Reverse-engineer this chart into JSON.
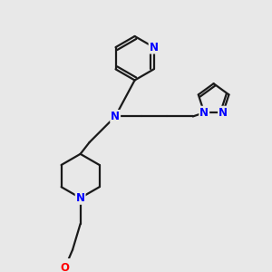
{
  "bg_color": "#e8e8e8",
  "bond_color": "#1a1a1a",
  "N_color": "#0000ff",
  "O_color": "#ff0000",
  "line_width": 1.6,
  "font_size_atom": 8.5,
  "fig_width": 3.0,
  "fig_height": 3.0,
  "dpi": 100,
  "xlim": [
    0,
    10
  ],
  "ylim": [
    0,
    10
  ]
}
